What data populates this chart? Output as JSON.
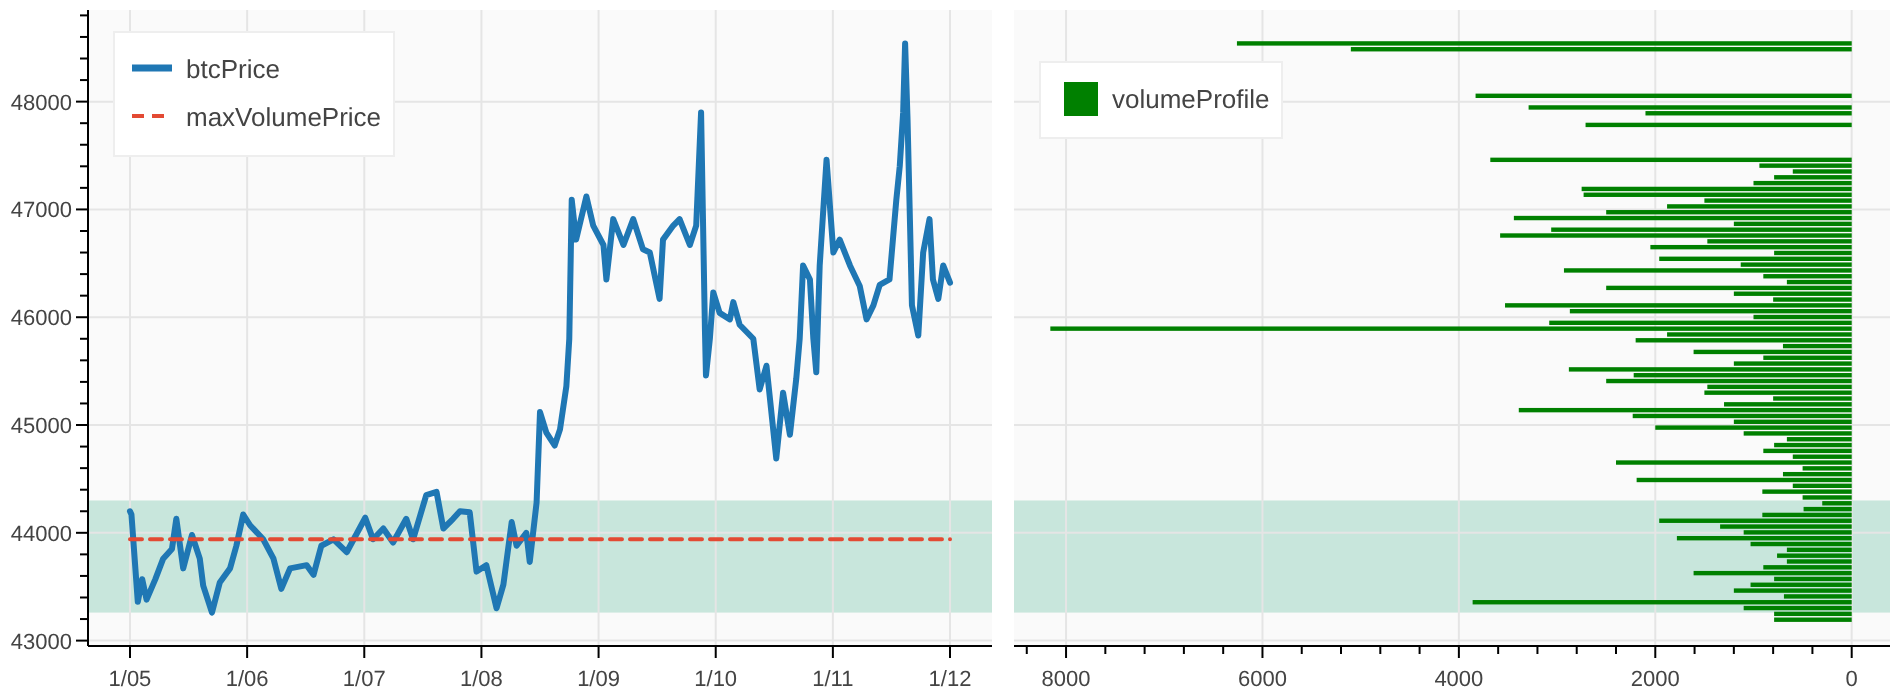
{
  "chart_data": [
    {
      "type": "line",
      "xlim": [
        "--01-04T15:24",
        "--01-12T08:36"
      ],
      "ylim": [
        42950,
        48850
      ],
      "xticks": [
        {
          "value": "--01-05",
          "label": "1/05"
        },
        {
          "value": "--01-06",
          "label": "1/06"
        },
        {
          "value": "--01-07",
          "label": "1/07"
        },
        {
          "value": "--01-08",
          "label": "1/08"
        },
        {
          "value": "--01-09",
          "label": "1/09"
        },
        {
          "value": "--01-10",
          "label": "1/10"
        },
        {
          "value": "--01-11",
          "label": "1/11"
        },
        {
          "value": "--01-12",
          "label": "1/12"
        }
      ],
      "yticks": [
        43000,
        {
          "value": 43200,
          "label": null
        },
        {
          "value": 43400,
          "label": null
        },
        {
          "value": 43600,
          "label": null
        },
        {
          "value": 43800,
          "label": null
        },
        44000,
        {
          "value": 44200,
          "label": null
        },
        {
          "value": 44400,
          "label": null
        },
        {
          "value": 44600,
          "label": null
        },
        {
          "value": 44800,
          "label": null
        },
        45000,
        {
          "value": 45200,
          "label": null
        },
        {
          "value": 45400,
          "label": null
        },
        {
          "value": 45600,
          "label": null
        },
        {
          "value": 45800,
          "label": null
        },
        46000,
        {
          "value": 46200,
          "label": null
        },
        {
          "value": 46400,
          "label": null
        },
        {
          "value": 46600,
          "label": null
        },
        {
          "value": 46800,
          "label": null
        },
        47000,
        {
          "value": 47200,
          "label": null
        },
        {
          "value": 47400,
          "label": null
        },
        {
          "value": 47600,
          "label": null
        },
        {
          "value": 47800,
          "label": null
        },
        48000,
        {
          "value": 48200,
          "label": null
        },
        {
          "value": 48400,
          "label": null
        },
        {
          "value": 48600,
          "label": null
        },
        {
          "value": 48800,
          "label": null
        }
      ],
      "grid": true,
      "legend": "top left",
      "bands": [
        {
          "axis": "y",
          "from": 43260,
          "to": 44300,
          "color": "#c8e6dc"
        }
      ],
      "series": [
        {
          "name": "btcPrice",
          "color": "#1f77b4",
          "line_style": "solid",
          "x": [
            "--01-05T00:00",
            "--01-05T00:18",
            "--01-05T01:36",
            "--01-05T02:30",
            "--01-05T03:24",
            "--01-05T05:12",
            "--01-05T06:48",
            "--01-05T08:36",
            "--01-05T09:30",
            "--01-05T10:54",
            "--01-05T12:42",
            "--01-05T14:18",
            "--01-05T15:00",
            "--01-05T16:48",
            "--01-05T18:24",
            "--01-05T20:30",
            "--01-05T21:48",
            "--01-05T23:12",
            "--01-06T00:36",
            "--01-06T03:18",
            "--01-06T05:24",
            "--01-06T07:00",
            "--01-06T08:48",
            "--01-06T12:12",
            "--01-06T13:36",
            "--01-06T15:12",
            "--01-06T17:42",
            "--01-06T20:24",
            "--01-07T00:12",
            "--01-07T01:48",
            "--01-07T03:54",
            "--01-07T05:54",
            "--01-07T08:36",
            "--01-07T10:00",
            "--01-07T12:42",
            "--01-07T14:48",
            "--01-07T16:12",
            "--01-07T18:12",
            "--01-07T19:36",
            "--01-07T21:36",
            "--01-07T23:00",
            "--01-08T01:00",
            "--01-08T03:06",
            "--01-08T04:30",
            "--01-08T06:12",
            "--01-08T07:12",
            "--01-08T09:12",
            "--01-08T09:54",
            "--01-08T11:18",
            "--01-08T12:00",
            "--01-08T13:18",
            "--01-08T15:00",
            "--01-08T16:06",
            "--01-08T17:24",
            "--01-08T18:00",
            "--01-08T18:30",
            "--01-08T19:24",
            "--01-08T21:30",
            "--01-08T22:54",
            "--01-09T01:00",
            "--01-09T01:36",
            "--01-09T03:00",
            "--01-09T05:06",
            "--01-09T07:06",
            "--01-09T09:06",
            "--01-09T10:30",
            "--01-09T12:30",
            "--01-09T13:12",
            "--01-09T15:18",
            "--01-09T16:36",
            "--01-09T18:42",
            "--01-09T20:00",
            "--01-09T21:00",
            "--01-09T21:48",
            "--01-09T22:00",
            "--01-09T22:48",
            "--01-09T23:30",
            "--01-10T00:48",
            "--01-10T02:54",
            "--01-10T03:36",
            "--01-10T04:54",
            "--01-10T07:42",
            "--01-10T09:00",
            "--01-10T10:24",
            "--01-10T12:24",
            "--01-10T13:48",
            "--01-10T15:12",
            "--01-10T16:30",
            "--01-10T17:12",
            "--01-10T17:54",
            "--01-10T19:18",
            "--01-10T20:00",
            "--01-10T20:36",
            "--01-10T21:18",
            "--01-10T22:42",
            "--01-11T00:06",
            "--01-11T01:24",
            "--01-11T03:30",
            "--01-11T05:30",
            "--01-11T06:54",
            "--01-11T08:18",
            "--01-11T09:36",
            "--01-11T11:36",
            "--01-11T13:00",
            "--01-11T13:42",
            "--01-11T14:24",
            "--01-11T14:48",
            "--01-11T15:18",
            "--01-11T16:12",
            "--01-11T17:30",
            "--01-11T18:30",
            "--01-11T19:48",
            "--01-11T20:30",
            "--01-11T21:36",
            "--01-11T22:36",
            "--01-12T00:00"
          ],
          "values": [
            44200,
            44170,
            43360,
            43570,
            43380,
            43570,
            43760,
            43850,
            44130,
            43670,
            43980,
            43760,
            43510,
            43260,
            43540,
            43670,
            43880,
            44170,
            44070,
            43940,
            43760,
            43480,
            43670,
            43700,
            43610,
            43880,
            43940,
            43820,
            44140,
            43940,
            44040,
            43910,
            44130,
            43940,
            44350,
            44380,
            44040,
            44130,
            44200,
            44190,
            43640,
            43700,
            43300,
            43520,
            44100,
            43880,
            44000,
            43730,
            44280,
            45120,
            44930,
            44810,
            44960,
            45360,
            45800,
            47090,
            46720,
            47120,
            46850,
            46670,
            46350,
            46910,
            46670,
            46910,
            46630,
            46600,
            46170,
            46720,
            46850,
            46910,
            46670,
            46850,
            47900,
            45860,
            45460,
            45800,
            46230,
            46040,
            45980,
            46140,
            45930,
            45800,
            45330,
            45550,
            44690,
            45300,
            44910,
            45430,
            45800,
            46480,
            46350,
            45800,
            45490,
            46480,
            47460,
            46600,
            46720,
            46480,
            46290,
            45980,
            46110,
            46300,
            46350,
            47090,
            47400,
            47900,
            48540,
            47830,
            46110,
            45830,
            46600,
            46910,
            46350,
            46170,
            46480,
            46320
          ]
        },
        {
          "name": "maxVolumePrice",
          "color": "#e34a33",
          "line_style": "dashed",
          "x": [
            "--01-05",
            "--01-12"
          ],
          "values": [
            43940,
            43940
          ]
        }
      ]
    },
    {
      "type": "bar",
      "orientation": "horizontal",
      "tick_labels": "x",
      "xlim": [
        8530,
        -390
      ],
      "ylim": [
        42950,
        48850
      ],
      "xticks": [
        {
          "value": 8400,
          "label": null
        },
        8000,
        {
          "value": 7600,
          "label": null
        },
        {
          "value": 7200,
          "label": null
        },
        {
          "value": 6800,
          "label": null
        },
        {
          "value": 6400,
          "label": null
        },
        6000,
        {
          "value": 5600,
          "label": null
        },
        {
          "value": 5200,
          "label": null
        },
        {
          "value": 4800,
          "label": null
        },
        {
          "value": 4400,
          "label": null
        },
        4000,
        {
          "value": 3600,
          "label": null
        },
        {
          "value": 3200,
          "label": null
        },
        {
          "value": 2800,
          "label": null
        },
        {
          "value": 2400,
          "label": null
        },
        2000,
        {
          "value": 1600,
          "label": null
        },
        {
          "value": 1200,
          "label": null
        },
        {
          "value": 800,
          "label": null
        },
        {
          "value": 400,
          "label": null
        },
        0
      ],
      "yticks": [
        43000,
        44000,
        45000,
        46000,
        47000,
        48000
      ],
      "grid": true,
      "legend": "top left",
      "bands": [
        {
          "axis": "y",
          "from": 43260,
          "to": 44300,
          "color": "#c8e6dc"
        }
      ],
      "x": [
        48540,
        48486,
        48432,
        48378,
        48324,
        48270,
        48216,
        48162,
        48108,
        48054,
        48000,
        47946,
        47892,
        47838,
        47784,
        47730,
        47676,
        47622,
        47568,
        47514,
        47460,
        47406,
        47352,
        47298,
        47244,
        47190,
        47136,
        47082,
        47028,
        46974,
        46920,
        46866,
        46812,
        46758,
        46704,
        46650,
        46596,
        46542,
        46488,
        46434,
        46380,
        46326,
        46272,
        46218,
        46164,
        46110,
        46056,
        46002,
        45948,
        45894,
        45840,
        45786,
        45732,
        45678,
        45624,
        45570,
        45516,
        45462,
        45408,
        45354,
        45300,
        45246,
        45192,
        45138,
        45084,
        45030,
        44976,
        44922,
        44868,
        44814,
        44760,
        44706,
        44652,
        44598,
        44544,
        44490,
        44436,
        44382,
        44328,
        44274,
        44220,
        44166,
        44112,
        44058,
        44004,
        43950,
        43896,
        43842,
        43788,
        43734,
        43680,
        43626,
        43572,
        43518,
        43464,
        43410,
        43356,
        43302,
        43248,
        43194
      ],
      "series": [
        {
          "name": "volumeProfile",
          "color": "#008000",
          "values": [
            6260,
            5100,
            0,
            0,
            0,
            0,
            0,
            0,
            0,
            3830,
            0,
            3290,
            2100,
            0,
            2710,
            0,
            0,
            0,
            0,
            0,
            3680,
            940,
            600,
            790,
            1000,
            2750,
            2730,
            1500,
            1880,
            2500,
            3440,
            1200,
            3060,
            3580,
            1470,
            2050,
            790,
            1960,
            1130,
            2930,
            900,
            660,
            2500,
            1200,
            800,
            3530,
            2870,
            1000,
            3080,
            8160,
            1880,
            2200,
            700,
            1610,
            900,
            1200,
            2880,
            2220,
            2500,
            1470,
            1500,
            800,
            1300,
            3390,
            2230,
            1200,
            2000,
            1100,
            660,
            790,
            900,
            600,
            2400,
            500,
            700,
            2190,
            600,
            910,
            500,
            300,
            490,
            910,
            1960,
            1340,
            1100,
            1780,
            1030,
            660,
            760,
            660,
            900,
            1610,
            790,
            1030,
            1200,
            690,
            3860,
            1100,
            790,
            790
          ]
        }
      ]
    }
  ]
}
